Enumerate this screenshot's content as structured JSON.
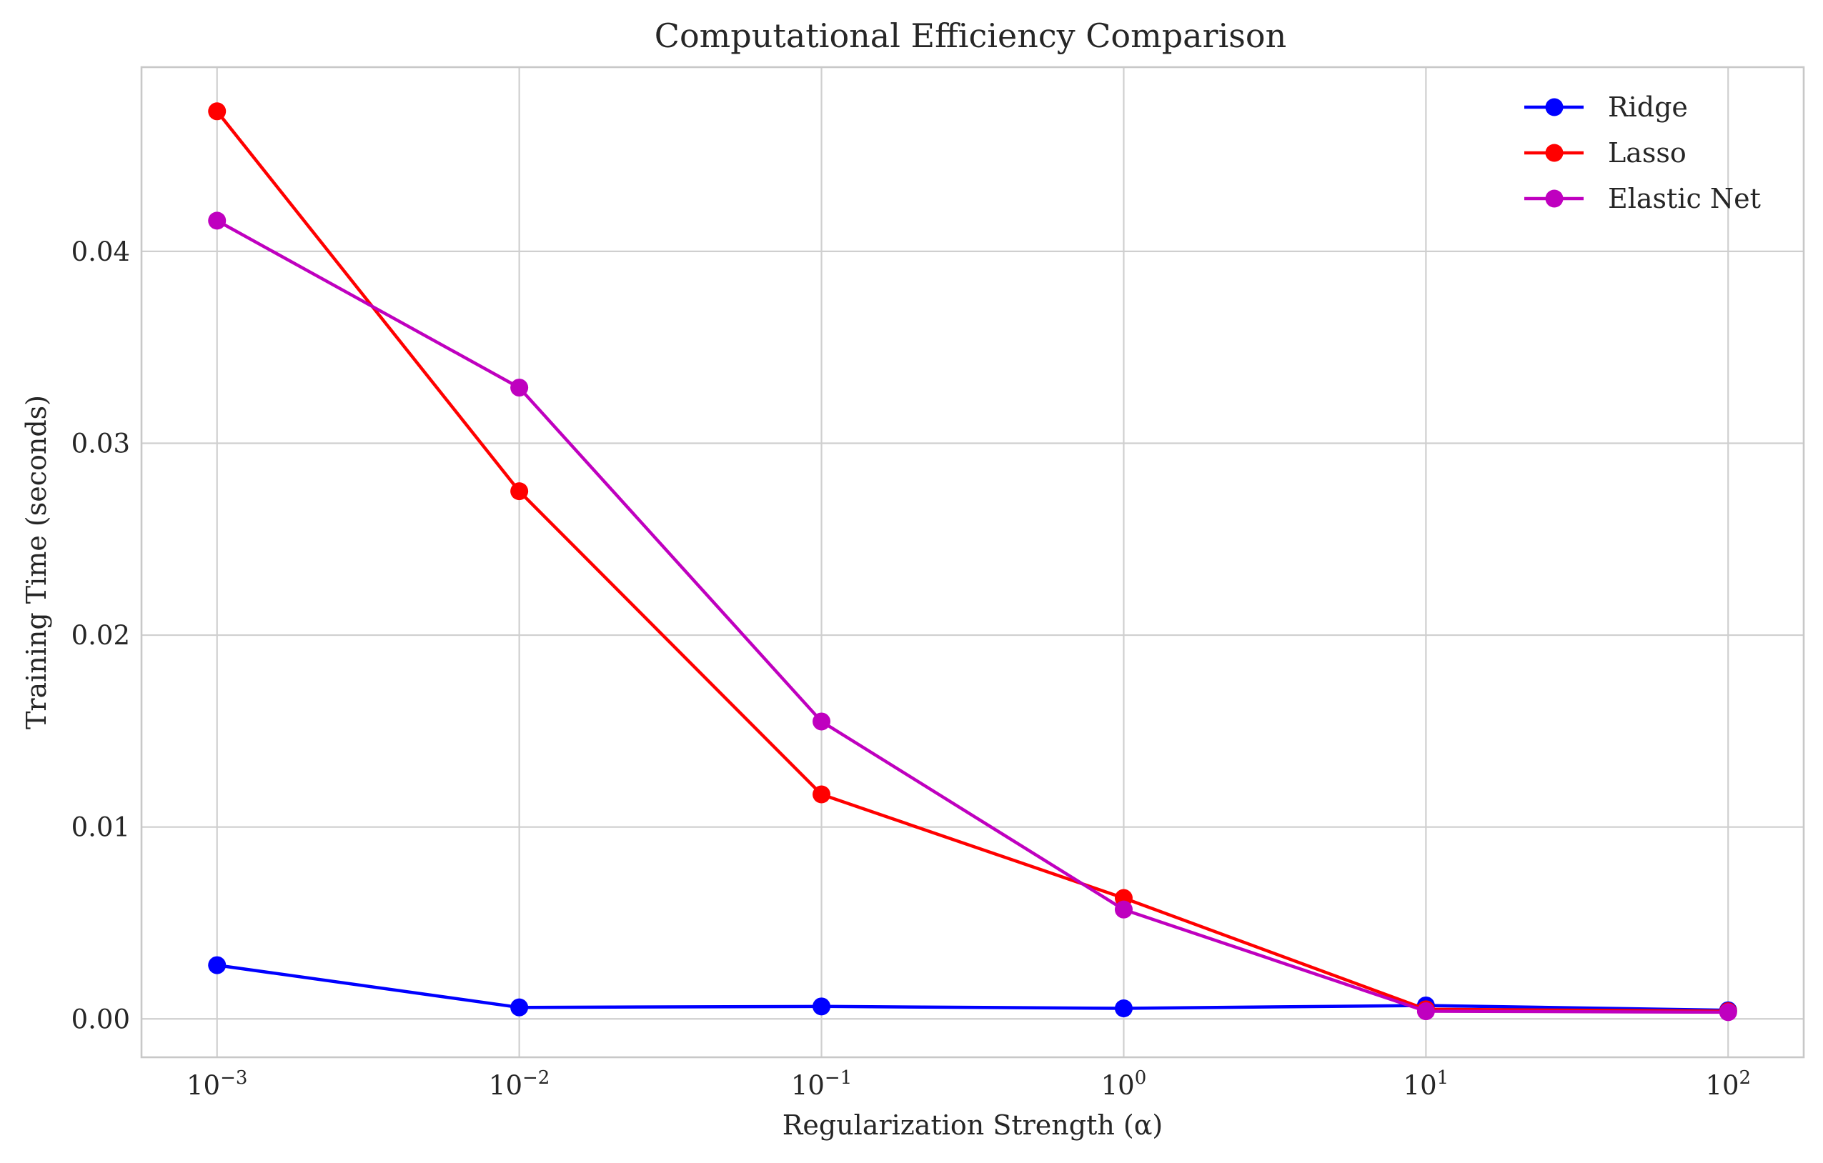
{
  "chart_data": {
    "type": "line",
    "title": "Computational Efficiency Comparison",
    "xlabel": "Regularization Strength (α)",
    "ylabel": "Training Time (seconds)",
    "xscale": "log",
    "x": [
      0.001,
      0.01,
      0.1,
      1,
      10,
      100
    ],
    "x_tick_labels": [
      {
        "base": "10",
        "exp": "−3"
      },
      {
        "base": "10",
        "exp": "−2"
      },
      {
        "base": "10",
        "exp": "−1"
      },
      {
        "base": "10",
        "exp": "0"
      },
      {
        "base": "10",
        "exp": "1"
      },
      {
        "base": "10",
        "exp": "2"
      }
    ],
    "xlim_exponents": [
      -3.25,
      2.25
    ],
    "ylim": [
      -0.002,
      0.0496
    ],
    "y_ticks": [
      0.0,
      0.01,
      0.02,
      0.03,
      0.04
    ],
    "y_tick_labels": [
      "0.00",
      "0.01",
      "0.02",
      "0.03",
      "0.04"
    ],
    "grid": true,
    "legend_position": "top-right",
    "series": [
      {
        "name": "Ridge",
        "color": "#0000ff",
        "marker": "circle",
        "values": [
          0.0028,
          0.0006,
          0.00065,
          0.00055,
          0.0007,
          0.00045
        ]
      },
      {
        "name": "Lasso",
        "color": "#ff0000",
        "marker": "circle",
        "values": [
          0.0473,
          0.0275,
          0.0117,
          0.0063,
          0.0005,
          0.0004
        ]
      },
      {
        "name": "Elastic Net",
        "color": "#bf00bf",
        "marker": "circle",
        "values": [
          0.0416,
          0.0329,
          0.0155,
          0.0057,
          0.0004,
          0.00035
        ]
      }
    ]
  }
}
